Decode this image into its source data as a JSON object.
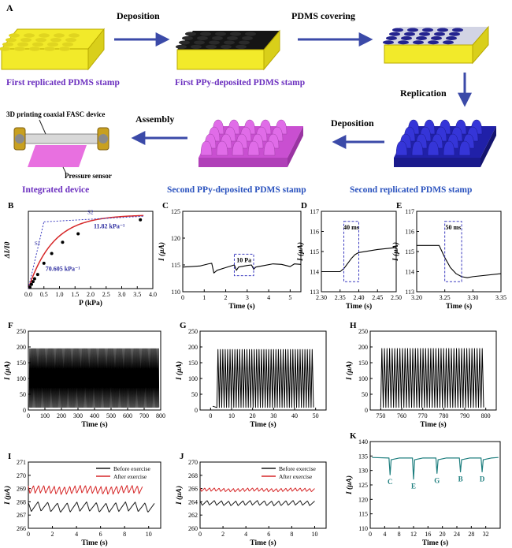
{
  "panel_a": {
    "letter": "A",
    "steps": {
      "deposition_1": "Deposition",
      "pdms_covering": "PDMS covering",
      "replication": "Replication",
      "deposition_2": "Deposition",
      "assembly": "Assembly"
    },
    "labels": {
      "first_replicated": "First replicated PDMS stamp",
      "first_ppy": "First PPy-deposited PDMS stamp",
      "second_replicated": "Second replicated PDMS stamp",
      "second_ppy": "Second PPy-deposited PDMS stamp",
      "integrated": "Integrated device"
    },
    "device": {
      "fasc_label": "3D printing coaxial FASC device",
      "sensor_label": "Pressure sensor"
    },
    "colors": {
      "yellow": "#f2ea2a",
      "black": "#1a1a1a",
      "blue": "#2b2bbd",
      "magenta": "#d85ce0",
      "label_purple": "#6b2fbf",
      "label_blue": "#2a52be",
      "arrow": "#3b4aa8"
    }
  },
  "chart_data": [
    {
      "id": "B",
      "type": "scatter",
      "xlabel": "P (kPa)",
      "ylabel": "ΔI/I0",
      "xlim": [
        0,
        4.0
      ],
      "xticks": [
        0.0,
        0.5,
        1.0,
        1.5,
        2.0,
        2.5,
        3.0,
        3.5,
        4.0
      ],
      "xtick_labels": [
        "0.0",
        "0.5",
        "1.0",
        "1.5",
        "2.0",
        "2.5",
        "3.0",
        "3.5",
        "4.0"
      ],
      "x": [
        0.05,
        0.1,
        0.15,
        0.2,
        0.3,
        0.5,
        0.75,
        1.1,
        1.6,
        3.6
      ],
      "y": [
        0.02,
        0.06,
        0.1,
        0.14,
        0.2,
        0.36,
        0.5,
        0.66,
        0.78,
        0.98
      ],
      "sensitivity_high": "70.605 kPa⁻¹",
      "sensitivity_low": "11.82 kPa⁻¹",
      "s1": "S1",
      "s2": "S2"
    },
    {
      "id": "C",
      "type": "line",
      "xlabel": "Time (s)",
      "ylabel": "I (μA)",
      "xlim": [
        0,
        5.5
      ],
      "ylim": [
        110,
        125
      ],
      "xticks": [
        0,
        1,
        2,
        3,
        4,
        5
      ],
      "yticks": [
        110,
        115,
        120,
        125
      ],
      "x": [
        0,
        0.4,
        0.8,
        1.2,
        1.35,
        1.45,
        1.6,
        2.0,
        2.4,
        2.5,
        2.6,
        3.0,
        3.2,
        3.3,
        3.4,
        3.8,
        4.2,
        4.6,
        5.0,
        5.2,
        5.5
      ],
      "y": [
        114.6,
        114.7,
        114.8,
        115.2,
        115.3,
        113.5,
        114.0,
        114.5,
        115.0,
        114.0,
        114.6,
        114.9,
        115.0,
        114.2,
        114.6,
        114.9,
        115.2,
        115.1,
        114.7,
        115.2,
        115.1
      ],
      "annotation": "10 Pa"
    },
    {
      "id": "D",
      "type": "line",
      "xlabel": "Time (s)",
      "ylabel": "I (μA)",
      "xlim": [
        2.3,
        2.5
      ],
      "ylim": [
        113,
        117
      ],
      "xticks": [
        2.3,
        2.35,
        2.4,
        2.45,
        2.5
      ],
      "xtick_labels": [
        "2.30",
        "2.35",
        "2.40",
        "2.45",
        "2.50"
      ],
      "yticks": [
        113,
        114,
        115,
        116,
        117
      ],
      "x": [
        2.3,
        2.35,
        2.36,
        2.37,
        2.38,
        2.39,
        2.4,
        2.45,
        2.5
      ],
      "y": [
        114.0,
        114.0,
        114.15,
        114.4,
        114.65,
        114.85,
        114.95,
        115.1,
        115.2
      ],
      "annotation": "40 ms"
    },
    {
      "id": "E",
      "type": "line",
      "xlabel": "Time (s)",
      "ylabel": "I (μA)",
      "xlim": [
        3.2,
        3.35
      ],
      "ylim": [
        113,
        117
      ],
      "xticks": [
        3.2,
        3.25,
        3.3,
        3.35
      ],
      "xtick_labels": [
        "3.20",
        "3.25",
        "3.30",
        "3.35"
      ],
      "yticks": [
        113,
        114,
        115,
        116,
        117
      ],
      "x": [
        3.2,
        3.24,
        3.25,
        3.26,
        3.27,
        3.28,
        3.29,
        3.3,
        3.35
      ],
      "y": [
        115.3,
        115.3,
        114.7,
        114.2,
        113.9,
        113.75,
        113.7,
        113.75,
        113.9
      ],
      "annotation": "50 ms"
    },
    {
      "id": "F",
      "type": "line",
      "xlabel": "Time (s)",
      "ylabel": "I (μA)",
      "xlim": [
        0,
        800
      ],
      "ylim": [
        0,
        250
      ],
      "xticks": [
        0,
        100,
        200,
        300,
        400,
        500,
        600,
        700,
        800
      ],
      "yticks": [
        0,
        50,
        100,
        150,
        200,
        250
      ],
      "x_start": 5,
      "x_end": 790,
      "cycles": 180,
      "y_low": 8,
      "y_high": 195
    },
    {
      "id": "G",
      "type": "line",
      "xlabel": "Time (s)",
      "ylabel": "I (μA)",
      "xlim": [
        -5,
        55
      ],
      "ylim": [
        0,
        250
      ],
      "xticks": [
        0,
        10,
        20,
        30,
        40,
        50
      ],
      "yticks": [
        0,
        50,
        100,
        150,
        200,
        250
      ],
      "x_start": 3,
      "x_end": 49,
      "cycles": 40,
      "y_low": 8,
      "y_high": 192,
      "lead_y": 12
    },
    {
      "id": "H",
      "type": "line",
      "xlabel": "Time (s)",
      "ylabel": "I (μA)",
      "xlim": [
        745,
        805
      ],
      "ylim": [
        0,
        250
      ],
      "xticks": [
        750,
        760,
        770,
        780,
        790,
        800
      ],
      "yticks": [
        0,
        50,
        100,
        150,
        200,
        250
      ],
      "x_start": 750,
      "x_end": 799,
      "cycles": 40,
      "y_low": 8,
      "y_high": 195
    },
    {
      "id": "I",
      "type": "line",
      "xlabel": "Time (s)",
      "ylabel": "I (μA)",
      "xlim": [
        0,
        11
      ],
      "ylim": [
        266,
        271
      ],
      "xticks": [
        0,
        2,
        4,
        6,
        8,
        10
      ],
      "yticks": [
        266,
        267,
        268,
        269,
        270,
        271
      ],
      "series": [
        {
          "name": "Before exercise",
          "color": "#1a1a1a",
          "base": 267.6,
          "amp": 0.35,
          "cycles": 13,
          "x_end": 10.5
        },
        {
          "name": "After exercise",
          "color": "#d62728",
          "base": 268.9,
          "amp": 0.3,
          "cycles": 22,
          "x_end": 9.5
        }
      ]
    },
    {
      "id": "J",
      "type": "line",
      "xlabel": "Time (s)",
      "ylabel": "I (μA)",
      "xlim": [
        0,
        11
      ],
      "ylim": [
        260,
        270
      ],
      "xticks": [
        0,
        2,
        4,
        6,
        8,
        10
      ],
      "yticks": [
        260,
        262,
        264,
        266,
        268,
        270
      ],
      "series": [
        {
          "name": "Before exercise",
          "color": "#1a1a1a",
          "base": 263.8,
          "amp": 0.35,
          "cycles": 16,
          "x_end": 10.0
        },
        {
          "name": "After exercise",
          "color": "#d62728",
          "base": 265.8,
          "amp": 0.25,
          "cycles": 24,
          "x_end": 10.0
        }
      ]
    },
    {
      "id": "K",
      "type": "line",
      "xlabel": "Time (s)",
      "ylabel": "I (μA)",
      "xlim": [
        0,
        36
      ],
      "ylim": [
        110,
        140
      ],
      "xticks": [
        0,
        4,
        8,
        12,
        16,
        20,
        24,
        28,
        32
      ],
      "yticks": [
        110,
        115,
        120,
        125,
        130,
        135,
        140
      ],
      "baseline": 134.5,
      "color": "#1f7f7f",
      "dips": [
        {
          "t": 5.5,
          "y": 128.5,
          "label": "C"
        },
        {
          "t": 12.0,
          "y": 127.0,
          "label": "E"
        },
        {
          "t": 18.5,
          "y": 129.0,
          "label": "G"
        },
        {
          "t": 25.0,
          "y": 129.5,
          "label": "B"
        },
        {
          "t": 31.0,
          "y": 129.5,
          "label": "D"
        }
      ]
    }
  ]
}
